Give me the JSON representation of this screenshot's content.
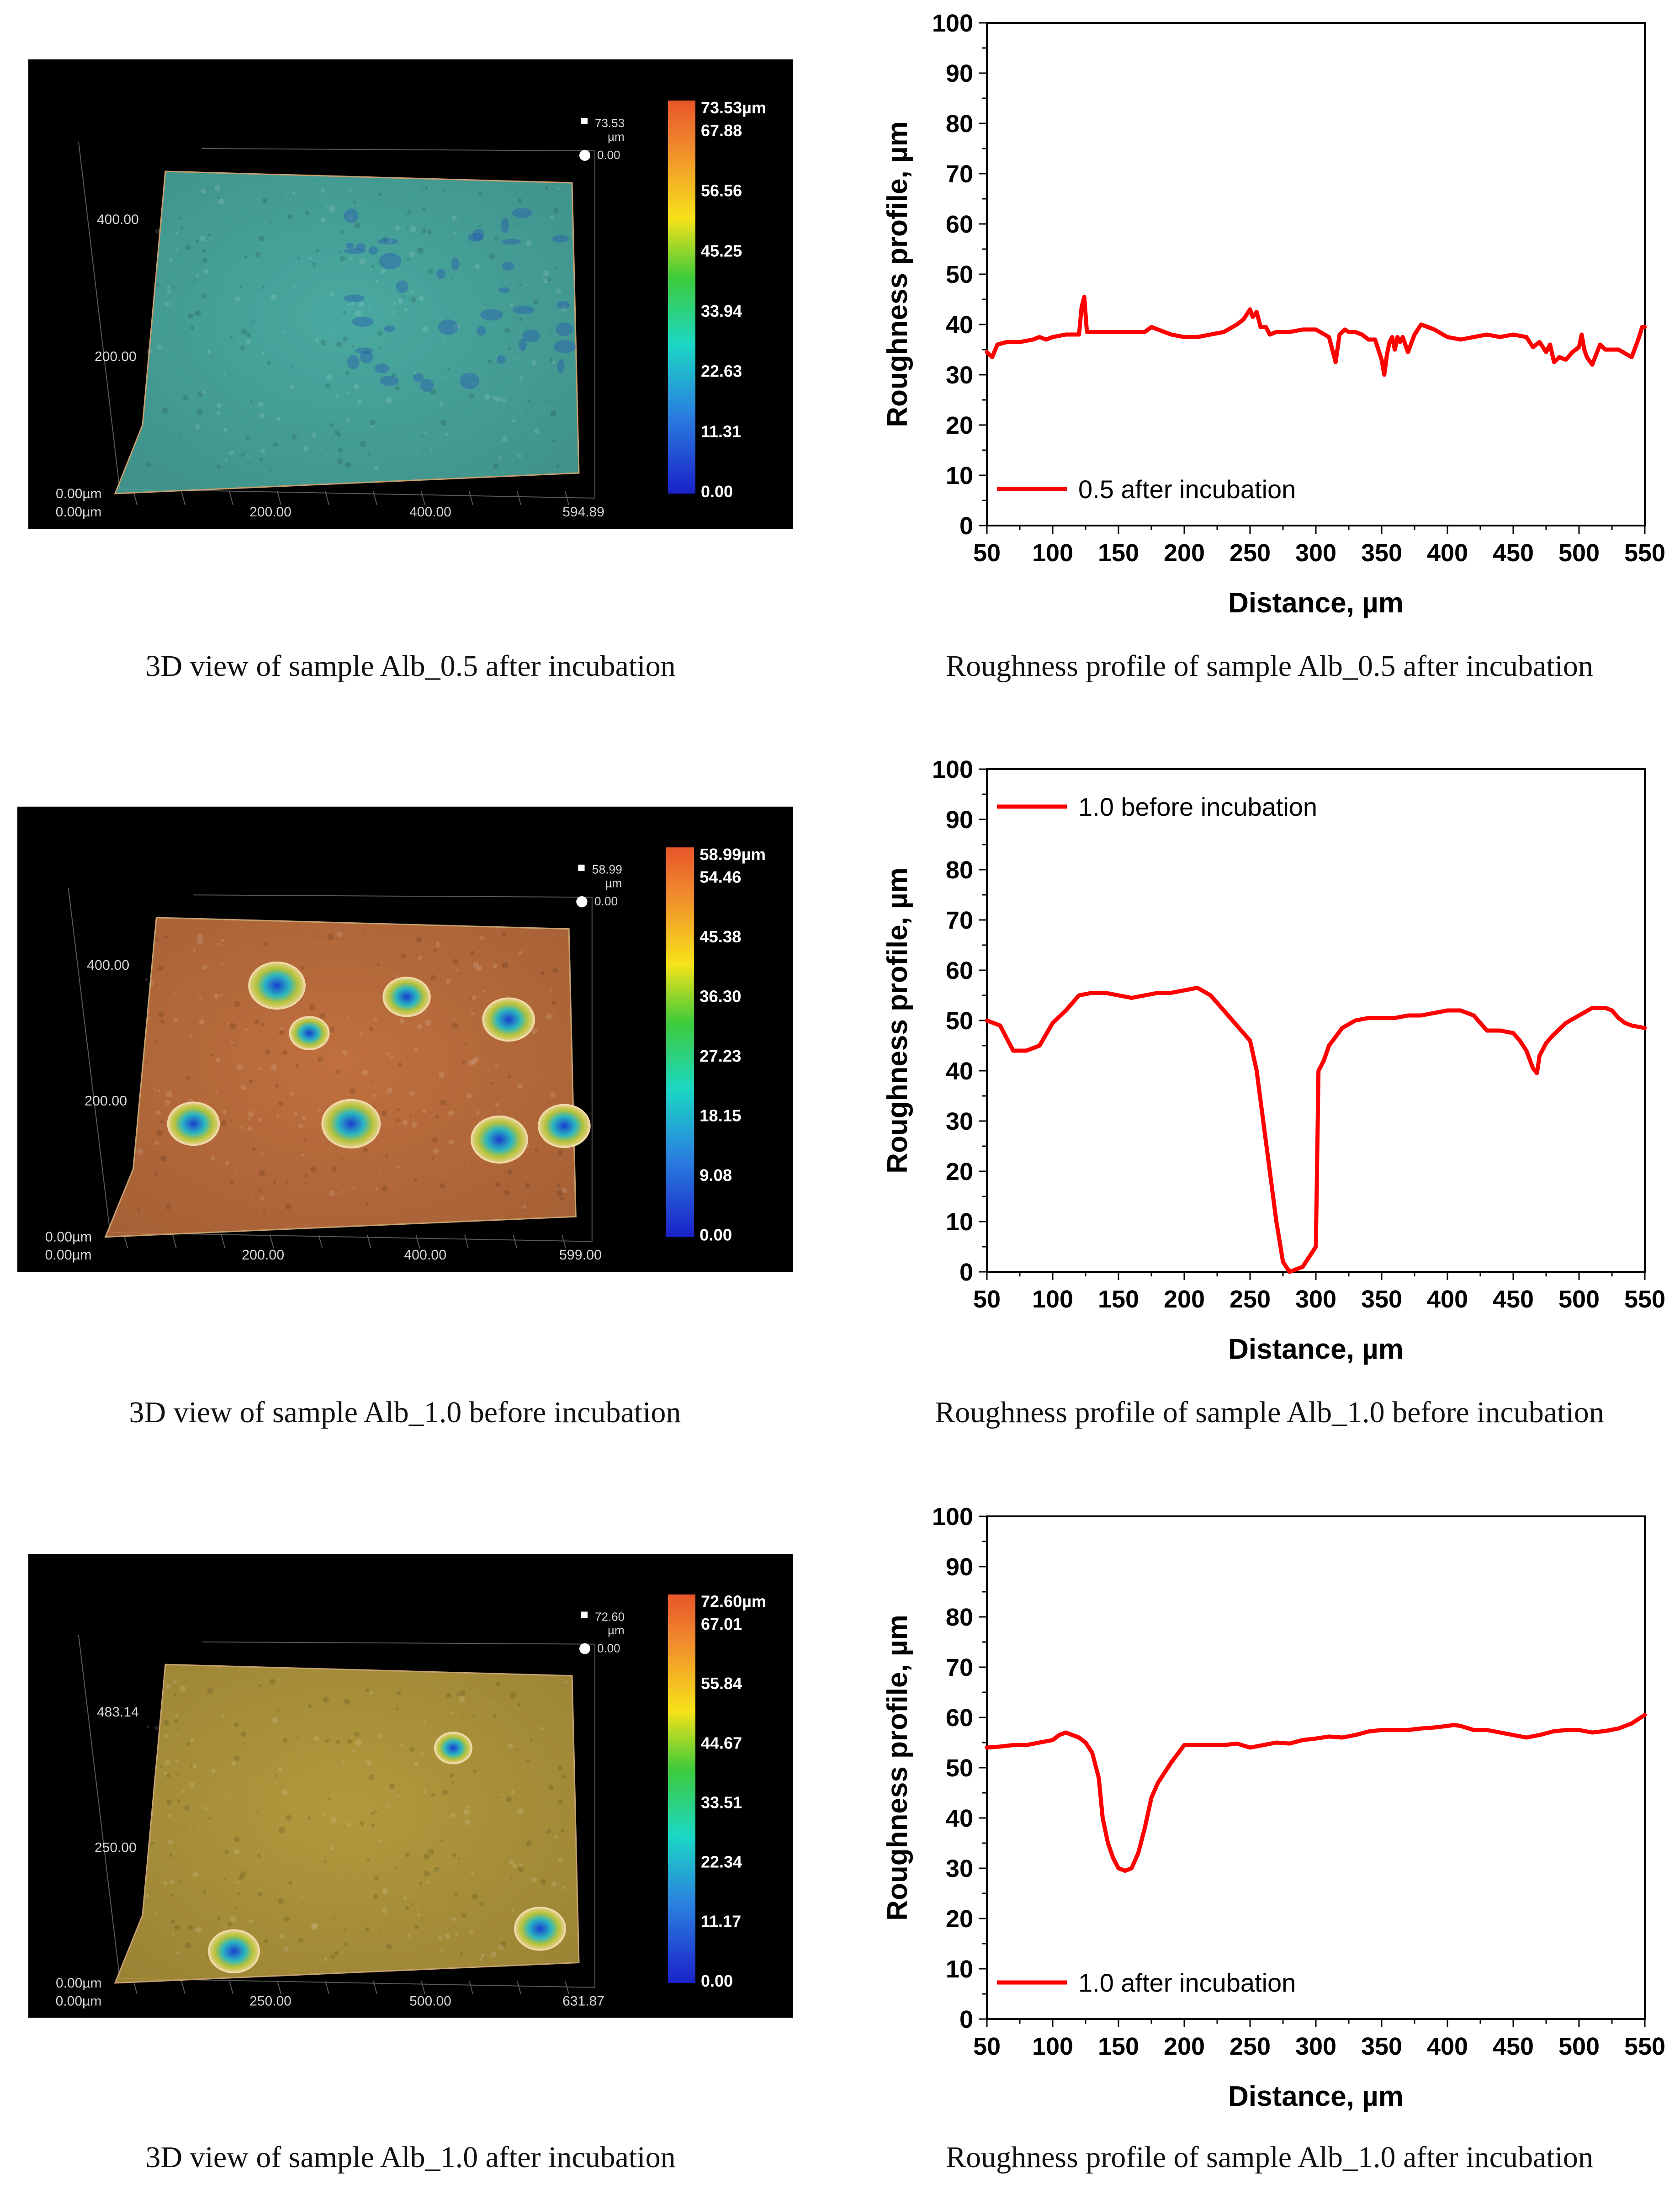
{
  "panels3d": [
    {
      "caption": "3D view of sample Alb_0.5 after incubation",
      "colorbar_labels": [
        "73.53µm",
        "67.88",
        "56.56",
        "45.25",
        "33.94",
        "22.63",
        "11.31",
        "0.00"
      ],
      "z_max": "73.53",
      "z_unit": "µm",
      "z_min": "0.00",
      "y_ticks": [
        "400.00",
        "200.00",
        "0.00µm"
      ],
      "x_ticks": [
        "0.00µm",
        "200.00",
        "400.00",
        "594.89"
      ],
      "surface_color": "#49a9a0",
      "features": "texture"
    },
    {
      "caption": "3D view of sample Alb_1.0 before incubation",
      "colorbar_labels": [
        "58.99µm",
        "54.46",
        "45.38",
        "36.30",
        "27.23",
        "18.15",
        "9.08",
        "0.00"
      ],
      "z_max": "58.99",
      "z_unit": "µm",
      "z_min": "0.00",
      "y_ticks": [
        "400.00",
        "200.00",
        "0.00µm"
      ],
      "x_ticks": [
        "0.00µm",
        "200.00",
        "400.00",
        "599.00"
      ],
      "surface_color": "#c0703e",
      "features": "pits"
    },
    {
      "caption": "3D view of sample Alb_1.0 after incubation",
      "colorbar_labels": [
        "72.60µm",
        "67.01",
        "55.84",
        "44.67",
        "33.51",
        "22.34",
        "11.17",
        "0.00"
      ],
      "z_max": "72.60",
      "z_unit": "µm",
      "z_min": "0.00",
      "y_ticks": [
        "483.14",
        "250.00",
        "0.00µm"
      ],
      "x_ticks": [
        "0.00µm",
        "250.00",
        "500.00",
        "631.87"
      ],
      "surface_color": "#b3993d",
      "features": "pits"
    }
  ],
  "chart_data": [
    {
      "type": "line",
      "title": "",
      "caption": "Roughness profile of sample Alb_0.5 after incubation",
      "xlabel": "Distance, µm",
      "ylabel": "Roughness profile, µm",
      "xlim": [
        50,
        550
      ],
      "ylim": [
        0,
        100
      ],
      "xticks": [
        50,
        100,
        150,
        200,
        250,
        300,
        350,
        400,
        450,
        500,
        550
      ],
      "yticks": [
        0,
        10,
        20,
        30,
        40,
        50,
        60,
        70,
        80,
        90,
        100
      ],
      "legend_position": "bottom-left",
      "series": [
        {
          "name": "0.5 after incubation",
          "color": "#ff0000",
          "x": [
            50,
            54,
            58,
            65,
            75,
            85,
            90,
            95,
            100,
            110,
            120,
            122,
            124,
            126,
            128,
            140,
            160,
            170,
            175,
            180,
            190,
            200,
            210,
            220,
            230,
            240,
            245,
            250,
            252,
            255,
            258,
            262,
            265,
            270,
            280,
            290,
            300,
            310,
            315,
            318,
            322,
            325,
            330,
            335,
            340,
            345,
            350,
            352,
            354,
            356,
            358,
            360,
            362,
            364,
            366,
            370,
            375,
            380,
            385,
            390,
            400,
            410,
            420,
            430,
            440,
            450,
            460,
            465,
            470,
            475,
            478,
            481,
            485,
            490,
            495,
            500,
            502,
            504,
            506,
            510,
            513,
            516,
            520,
            530,
            540,
            545,
            548,
            550
          ],
          "y": [
            34.5,
            33.5,
            36,
            36.5,
            36.5,
            37,
            37.5,
            37,
            37.5,
            38,
            38,
            43.5,
            45.5,
            38.5,
            38.5,
            38.5,
            38.5,
            38.5,
            39.5,
            39,
            38,
            37.5,
            37.5,
            38,
            38.5,
            40,
            41,
            43,
            41.5,
            42.5,
            39.5,
            39.5,
            38,
            38.5,
            38.5,
            39,
            39,
            37.5,
            32.5,
            38,
            39,
            38.5,
            38.5,
            38,
            37,
            37,
            33,
            30,
            34,
            36.5,
            37.5,
            35,
            37.5,
            36.5,
            37.5,
            34.5,
            38,
            40,
            39.5,
            39,
            37.5,
            37,
            37.5,
            38,
            37.5,
            38,
            37.5,
            35.5,
            36.5,
            34.5,
            36,
            32.5,
            33.5,
            33,
            34.5,
            35.5,
            38,
            35,
            33.5,
            32,
            34,
            36,
            35,
            35,
            33.5,
            37,
            39.5,
            39.5
          ]
        }
      ]
    },
    {
      "type": "line",
      "title": "",
      "caption": "Roughness profile of sample Alb_1.0 before incubation",
      "xlabel": "Distance, µm",
      "ylabel": "Roughness profile, µm",
      "xlim": [
        50,
        550
      ],
      "ylim": [
        0,
        100
      ],
      "xticks": [
        50,
        100,
        150,
        200,
        250,
        300,
        350,
        400,
        450,
        500,
        550
      ],
      "yticks": [
        0,
        10,
        20,
        30,
        40,
        50,
        60,
        70,
        80,
        90,
        100
      ],
      "legend_position": "top-left",
      "series": [
        {
          "name": "1.0 before incubation",
          "color": "#ff0000",
          "x": [
            50,
            60,
            70,
            80,
            90,
            100,
            110,
            120,
            130,
            140,
            150,
            160,
            170,
            180,
            190,
            200,
            210,
            220,
            230,
            240,
            250,
            255,
            260,
            265,
            270,
            275,
            280,
            285,
            290,
            295,
            300,
            302,
            304,
            306,
            310,
            320,
            330,
            340,
            350,
            360,
            370,
            380,
            390,
            400,
            410,
            420,
            430,
            440,
            450,
            455,
            460,
            465,
            468,
            470,
            475,
            480,
            490,
            500,
            510,
            520,
            525,
            530,
            535,
            540,
            550
          ],
          "y": [
            50,
            49,
            44,
            44,
            45,
            49.5,
            52,
            55,
            55.5,
            55.5,
            55,
            54.5,
            55,
            55.5,
            55.5,
            56,
            56.5,
            55,
            52,
            49,
            46,
            40,
            30,
            20,
            10,
            2,
            0,
            0.5,
            1,
            3,
            5,
            40,
            41,
            42,
            45,
            48.5,
            50,
            50.5,
            50.5,
            50.5,
            51,
            51,
            51.5,
            52,
            52,
            51,
            48,
            48,
            47.5,
            46,
            44,
            40.5,
            39.5,
            43,
            45.5,
            47,
            49.5,
            51,
            52.5,
            52.5,
            52,
            50.5,
            49.5,
            49,
            48.5
          ]
        }
      ]
    },
    {
      "type": "line",
      "title": "",
      "caption": "Roughness profile of sample Alb_1.0 after incubation",
      "xlabel": "Distance, µm",
      "ylabel": "Roughness profile, µm",
      "xlim": [
        50,
        550
      ],
      "ylim": [
        0,
        100
      ],
      "xticks": [
        50,
        100,
        150,
        200,
        250,
        300,
        350,
        400,
        450,
        500,
        550
      ],
      "yticks": [
        0,
        10,
        20,
        30,
        40,
        50,
        60,
        70,
        80,
        90,
        100
      ],
      "legend_position": "bottom-left",
      "series": [
        {
          "name": "1.0 after incubation",
          "color": "#ff0000",
          "x": [
            50,
            60,
            70,
            80,
            90,
            100,
            105,
            110,
            115,
            120,
            125,
            130,
            135,
            138,
            142,
            146,
            150,
            155,
            160,
            165,
            170,
            175,
            180,
            185,
            190,
            200,
            210,
            220,
            230,
            240,
            250,
            260,
            270,
            280,
            290,
            300,
            310,
            320,
            330,
            340,
            350,
            360,
            370,
            380,
            390,
            400,
            405,
            410,
            420,
            430,
            440,
            450,
            460,
            470,
            480,
            490,
            500,
            510,
            520,
            530,
            540,
            550
          ],
          "y": [
            54,
            54.2,
            54.5,
            54.5,
            55,
            55.5,
            56.5,
            57,
            56.5,
            56,
            55,
            53,
            48,
            40,
            35,
            32,
            30,
            29.5,
            30,
            33,
            38,
            44,
            47,
            49,
            51,
            54.5,
            54.5,
            54.5,
            54.5,
            54.8,
            54,
            54.5,
            55,
            54.8,
            55.5,
            55.8,
            56.2,
            56,
            56.5,
            57.2,
            57.5,
            57.5,
            57.5,
            57.8,
            58,
            58.3,
            58.5,
            58.3,
            57.5,
            57.5,
            57,
            56.5,
            56,
            56.5,
            57.2,
            57.5,
            57.5,
            57,
            57.3,
            57.8,
            58.8,
            60.5
          ]
        }
      ]
    }
  ]
}
